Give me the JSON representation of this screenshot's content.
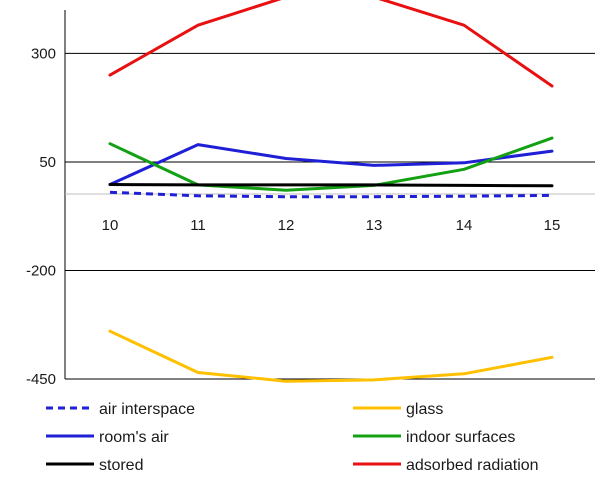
{
  "chart_data": {
    "type": "line",
    "x": [
      10,
      11,
      12,
      13,
      14,
      15
    ],
    "ylim": [
      -450,
      400
    ],
    "yticks": [
      300,
      50,
      -200,
      -450
    ],
    "grid": true,
    "legend_position": "bottom",
    "series": [
      {
        "name": "air interspace",
        "color": "#1f1fd6",
        "dashed": true,
        "values": [
          -20,
          -28,
          -30,
          -30,
          -29,
          -27
        ]
      },
      {
        "name": "glass",
        "color": "#ffc000",
        "dashed": false,
        "values": [
          -340,
          -435,
          -455,
          -452,
          -438,
          -400
        ]
      },
      {
        "name": "room's air",
        "color": "#1f1fd6",
        "dashed": false,
        "values": [
          -2,
          90,
          58,
          42,
          48,
          75
        ]
      },
      {
        "name": "indoor surfaces",
        "color": "#13a013",
        "dashed": false,
        "values": [
          92,
          -3,
          -15,
          -4,
          33,
          105
        ]
      },
      {
        "name": "stored",
        "color": "#000000",
        "dashed": false,
        "values": [
          -2,
          -3,
          -3,
          -3,
          -4,
          -5
        ]
      },
      {
        "name": "adsorbed radiation",
        "color": "#e81010",
        "dashed": false,
        "values": [
          250,
          365,
          430,
          430,
          365,
          225
        ]
      }
    ]
  }
}
